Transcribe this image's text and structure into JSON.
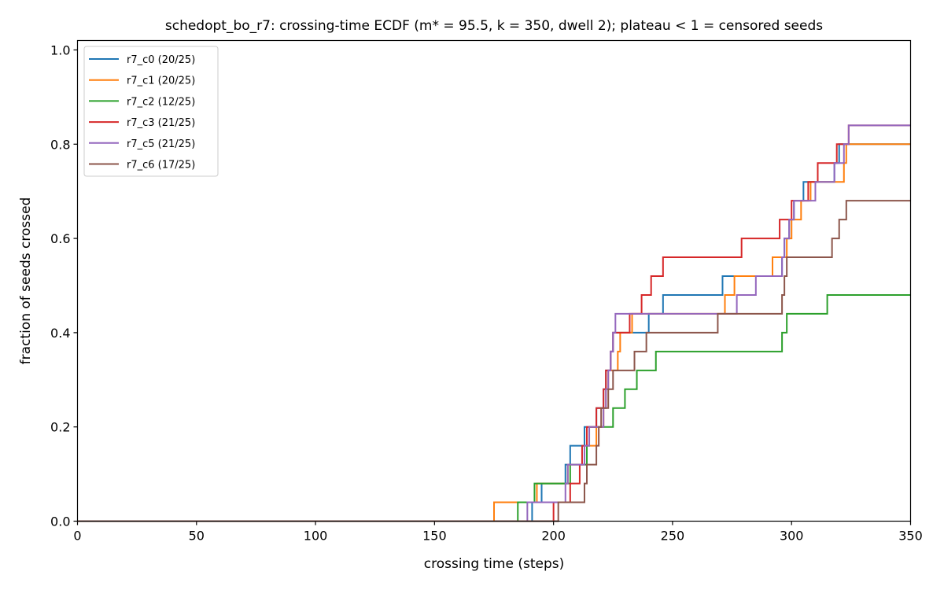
{
  "chart_data": {
    "type": "line",
    "title": "schedopt_bo_r7: crossing-time ECDF (m* = 95.5, k = 350, dwell 2); plateau < 1 = censored seeds",
    "xlabel": "crossing time (steps)",
    "ylabel": "fraction of seeds crossed",
    "xlim": [
      0,
      350
    ],
    "ylim": [
      0,
      1.02
    ],
    "xticks": [
      0,
      50,
      100,
      150,
      200,
      250,
      300,
      350
    ],
    "yticks": [
      0.0,
      0.2,
      0.4,
      0.6,
      0.8,
      1.0
    ],
    "xtick_labels": [
      "0",
      "50",
      "100",
      "150",
      "200",
      "250",
      "300",
      "350"
    ],
    "ytick_labels": [
      "0.0",
      "0.2",
      "0.4",
      "0.6",
      "0.8",
      "1.0"
    ],
    "grid": false,
    "legend_position": "upper left",
    "series": [
      {
        "name": "r7_c0 (20/25)",
        "color": "#1f77b4",
        "crossings": [
          191,
          195,
          205,
          207,
          213,
          218,
          221,
          222,
          224,
          225,
          240,
          246,
          271,
          296,
          297,
          299,
          301,
          305,
          318,
          320
        ]
      },
      {
        "name": "r7_c1 (20/25)",
        "color": "#ff7f0e",
        "crossings": [
          175,
          193,
          206,
          214,
          218,
          221,
          222,
          223,
          227,
          228,
          233,
          272,
          276,
          292,
          298,
          300,
          304,
          308,
          322,
          323
        ]
      },
      {
        "name": "r7_c2 (12/25)",
        "color": "#2ca02c",
        "crossings": [
          185,
          192,
          207,
          214,
          215,
          225,
          230,
          235,
          243,
          296,
          298,
          315
        ]
      },
      {
        "name": "r7_c3 (21/25)",
        "color": "#d62728",
        "crossings": [
          200,
          207,
          211,
          212,
          214,
          218,
          221,
          222,
          224,
          225,
          232,
          237,
          241,
          246,
          279,
          295,
          300,
          307,
          311,
          319,
          324
        ]
      },
      {
        "name": "r7_c5 (21/25)",
        "color": "#9467bd",
        "crossings": [
          189,
          205,
          206,
          213,
          215,
          221,
          222,
          223,
          224,
          225,
          226,
          277,
          285,
          296,
          297,
          299,
          301,
          310,
          318,
          322,
          324
        ]
      },
      {
        "name": "r7_c6 (17/25)",
        "color": "#8c564b",
        "crossings": [
          202,
          213,
          214,
          218,
          219,
          220,
          223,
          225,
          234,
          239,
          269,
          296,
          297,
          298,
          317,
          320,
          323
        ]
      }
    ],
    "n_seeds": 25
  }
}
